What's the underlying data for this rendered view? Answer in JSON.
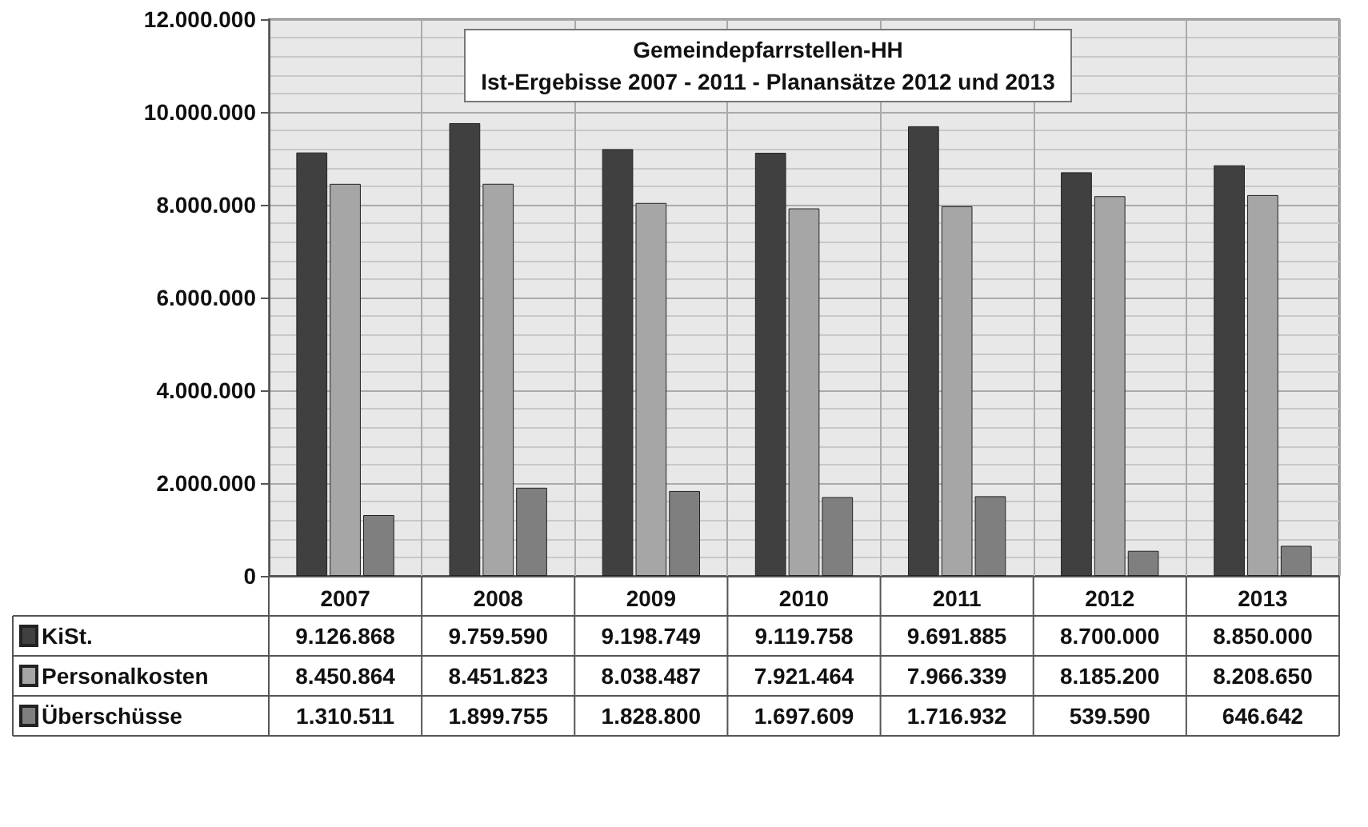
{
  "chart_data": {
    "type": "bar",
    "title": "Gemeindepfarrstellen-HH",
    "subtitle": "Ist-Ergebisse 2007 - 2011 - Planansätze 2012 und 2013",
    "categories": [
      "2007",
      "2008",
      "2009",
      "2010",
      "2011",
      "2012",
      "2013"
    ],
    "series": [
      {
        "name": "KiSt.",
        "color": "#404040",
        "values": [
          9126868,
          9759590,
          9198749,
          9119758,
          9691885,
          8700000,
          8850000
        ],
        "value_labels": [
          "9.126.868",
          "9.759.590",
          "9.198.749",
          "9.119.758",
          "9.691.885",
          "8.700.000",
          "8.850.000"
        ]
      },
      {
        "name": "Personalkosten",
        "color": "#a6a6a6",
        "values": [
          8450864,
          8451823,
          8038487,
          7921464,
          7966339,
          8185200,
          8208650
        ],
        "value_labels": [
          "8.450.864",
          "8.451.823",
          "8.038.487",
          "7.921.464",
          "7.966.339",
          "8.185.200",
          "8.208.650"
        ]
      },
      {
        "name": "Überschüsse",
        "color": "#7f7f7f",
        "values": [
          1310511,
          1899755,
          1828800,
          1697609,
          1716932,
          539590,
          646642
        ],
        "value_labels": [
          "1.310.511",
          "1.899.755",
          "1.828.800",
          "1.697.609",
          "1.716.932",
          "539.590",
          "646.642"
        ]
      }
    ],
    "ylim": [
      0,
      12000000
    ],
    "yticks": [
      {
        "value": 0,
        "label": "0"
      },
      {
        "value": 2000000,
        "label": "2.000.000"
      },
      {
        "value": 4000000,
        "label": "4.000.000"
      },
      {
        "value": 6000000,
        "label": "6.000.000"
      },
      {
        "value": 8000000,
        "label": "8.000.000"
      },
      {
        "value": 10000000,
        "label": "10.000.000"
      },
      {
        "value": 12000000,
        "label": "12.000.000"
      }
    ],
    "grid": true,
    "legend": "bottom left"
  }
}
